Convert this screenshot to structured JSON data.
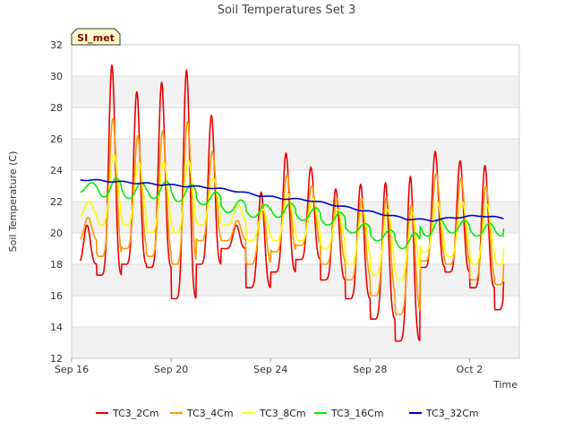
{
  "chart_data": {
    "type": "line",
    "title": "Soil Temperatures Set 3",
    "xlabel": "Time",
    "ylabel": "Soil Temperature (C)",
    "station_label": "SI_met",
    "xlim": [
      "2023-09-16",
      "2023-10-04"
    ],
    "ylim": [
      12,
      32
    ],
    "y_ticks": [
      12,
      14,
      16,
      18,
      20,
      22,
      24,
      26,
      28,
      30,
      32
    ],
    "x_ticks": [
      {
        "date": "2023-09-16",
        "label": "Sep 16"
      },
      {
        "date": "2023-09-20",
        "label": "Sep 20"
      },
      {
        "date": "2023-09-24",
        "label": "Sep 24"
      },
      {
        "date": "2023-09-28",
        "label": "Sep 28"
      },
      {
        "date": "2023-10-02",
        "label": "Oct 2"
      }
    ],
    "grid": true,
    "legend_position": "bottom",
    "x": [
      "2023-09-16",
      "2023-09-17",
      "2023-09-18",
      "2023-09-19",
      "2023-09-20",
      "2023-09-21",
      "2023-09-22",
      "2023-09-23",
      "2023-09-24",
      "2023-09-25",
      "2023-09-26",
      "2023-09-27",
      "2023-09-28",
      "2023-09-29",
      "2023-09-30",
      "2023-10-01",
      "2023-10-02",
      "2023-10-03"
    ],
    "series": [
      {
        "name": "TC3_2Cm",
        "color": "#ee0000",
        "daily_min": [
          18.0,
          17.3,
          18.0,
          17.8,
          15.8,
          18.0,
          19.0,
          16.5,
          17.5,
          18.3,
          17.0,
          15.8,
          14.5,
          13.1,
          17.8,
          17.5,
          16.5,
          15.1
        ],
        "daily_max": [
          20.5,
          30.7,
          29.0,
          29.6,
          30.4,
          27.5,
          20.5,
          22.6,
          25.1,
          24.2,
          22.8,
          23.1,
          23.2,
          23.6,
          25.2,
          24.6,
          24.3,
          24.4
        ],
        "end": 16.9
      },
      {
        "name": "TC3_4Cm",
        "color": "#ff9900",
        "daily_min": [
          19.5,
          18.5,
          19.0,
          18.5,
          18.0,
          19.5,
          19.5,
          18.0,
          18.8,
          19.2,
          18.0,
          17.0,
          16.0,
          14.8,
          18.2,
          18.0,
          17.0,
          16.7
        ],
        "daily_max": [
          21.0,
          27.3,
          26.2,
          26.5,
          27.1,
          25.2,
          20.8,
          21.8,
          23.7,
          23.0,
          22.2,
          22.2,
          22.3,
          21.8,
          23.8,
          23.5,
          23.0,
          22.5
        ],
        "end": 18.0
      },
      {
        "name": "TC3_8Cm",
        "color": "#ffff00",
        "daily_min": [
          21.0,
          20.5,
          20.5,
          20.0,
          20.0,
          20.5,
          20.5,
          19.5,
          19.5,
          19.5,
          19.0,
          18.0,
          17.3,
          17.0,
          18.8,
          18.5,
          18.0,
          18.0
        ],
        "daily_max": [
          22.0,
          25.0,
          24.5,
          24.5,
          24.6,
          23.5,
          21.8,
          21.5,
          22.5,
          22.2,
          21.5,
          21.5,
          21.5,
          21.3,
          22.0,
          22.0,
          21.8,
          21.5
        ],
        "end": 19.0
      },
      {
        "name": "TC3_16Cm",
        "color": "#00ee00",
        "daily_min": [
          22.6,
          22.3,
          22.2,
          22.2,
          22.0,
          21.8,
          21.3,
          21.0,
          21.0,
          20.8,
          20.5,
          20.0,
          19.5,
          19.0,
          19.8,
          20.0,
          19.8,
          19.8
        ],
        "daily_max": [
          23.2,
          23.5,
          23.2,
          23.3,
          23.1,
          22.6,
          22.1,
          21.8,
          21.9,
          21.6,
          21.3,
          20.6,
          20.2,
          20.0,
          20.9,
          20.8,
          20.6,
          20.5
        ],
        "end": 20.3
      },
      {
        "name": "TC3_32Cm",
        "color": "#0000cc",
        "values": [
          23.4,
          23.3,
          23.2,
          23.1,
          23.0,
          22.9,
          22.7,
          22.4,
          22.2,
          22.1,
          21.8,
          21.5,
          21.2,
          20.9,
          20.8,
          21.0,
          21.1,
          20.9
        ],
        "end": 20.9
      }
    ]
  }
}
